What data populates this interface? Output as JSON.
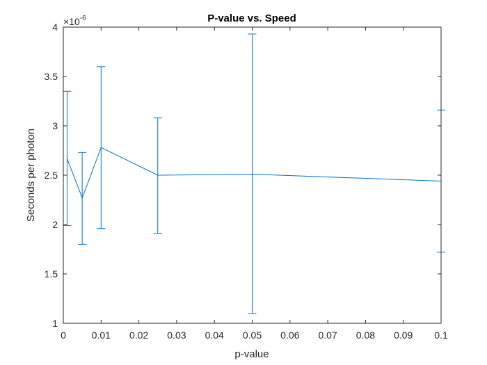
{
  "chart_data": {
    "type": "line",
    "title": "P-value vs. Speed",
    "xlabel": "p-value",
    "ylabel": "Seconds per photon",
    "y_multiplier": {
      "base": "×10",
      "exponent": "-6"
    },
    "xlim": [
      0,
      0.1
    ],
    "ylim": [
      1,
      4
    ],
    "xticks": [
      0,
      0.01,
      0.02,
      0.03,
      0.04,
      0.05,
      0.06,
      0.07,
      0.08,
      0.09,
      0.1
    ],
    "xtick_labels": [
      "0",
      "0.01",
      "0.02",
      "0.03",
      "0.04",
      "0.05",
      "0.06",
      "0.07",
      "0.08",
      "0.09",
      "0.1"
    ],
    "yticks": [
      1,
      1.5,
      2,
      2.5,
      3,
      3.5,
      4
    ],
    "ytick_labels": [
      "1",
      "1.5",
      "2",
      "2.5",
      "3",
      "3.5",
      "4"
    ],
    "grid": false,
    "error_bars": true,
    "color": "#0072bd",
    "series": [
      {
        "x": [
          0.001,
          0.005,
          0.01,
          0.025,
          0.05,
          0.1
        ],
        "y": [
          2.67,
          2.27,
          2.78,
          2.5,
          2.51,
          2.44
        ],
        "err_low": [
          1.99,
          1.8,
          1.96,
          1.91,
          1.1,
          1.72
        ],
        "err_high": [
          3.35,
          2.73,
          3.6,
          3.08,
          3.93,
          3.16
        ]
      }
    ]
  }
}
